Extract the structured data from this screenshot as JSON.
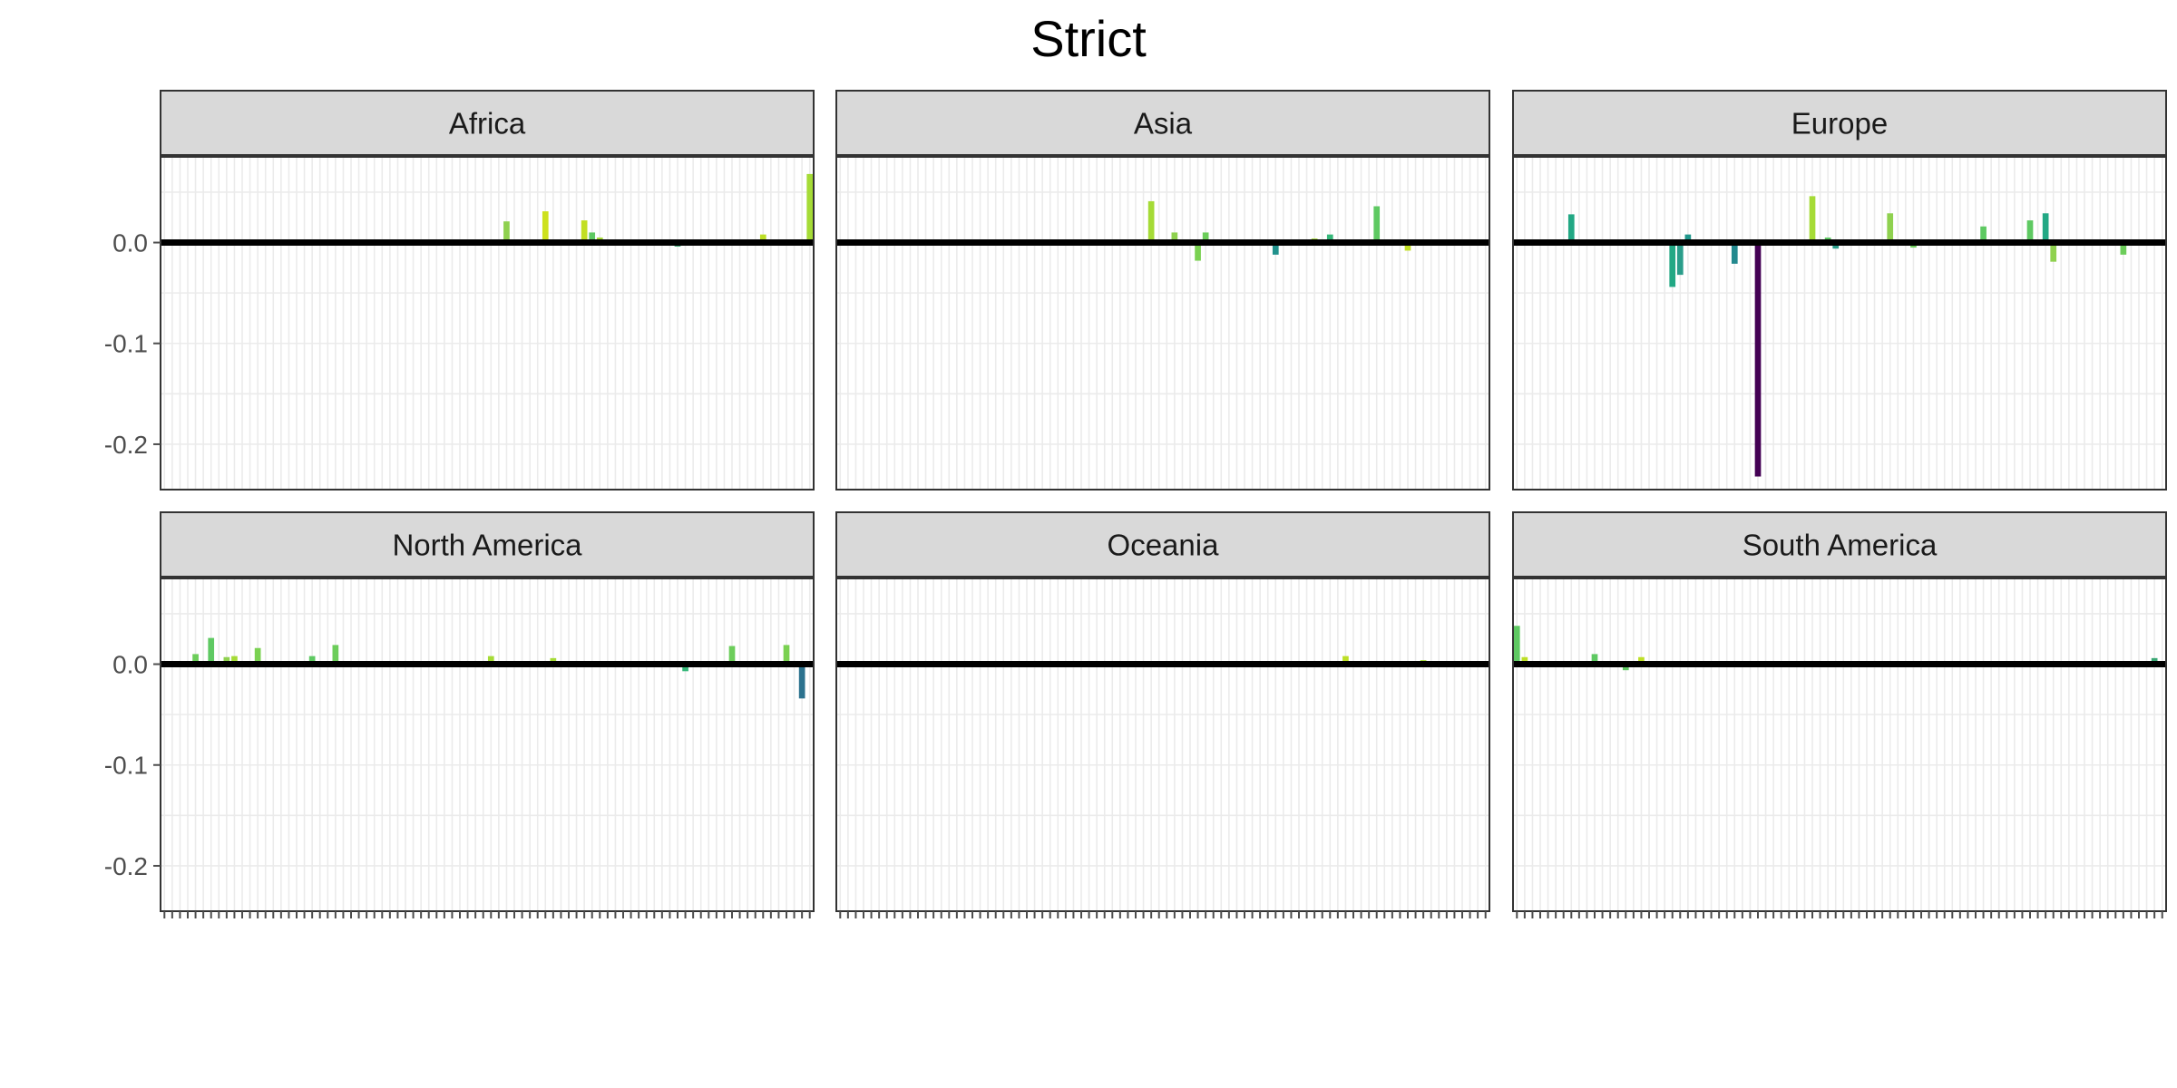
{
  "chart_data": {
    "type": "bar",
    "title": "Strict",
    "xlabel": "",
    "ylabel": "",
    "ylim": [
      -0.245,
      0.085
    ],
    "y_ticks": [
      0.0,
      -0.1,
      -0.2
    ],
    "y_tick_labels": [
      "0.0",
      "-0.1",
      "-0.2"
    ],
    "grid": true,
    "legend": "none",
    "zero_line": true,
    "facet_layout": "2 rows x 3 columns",
    "n_categories": 84,
    "colors": {
      "strip_fill": "#d9d9d9",
      "panel_border": "#333333",
      "grid_major": "#ebebeb",
      "zero_line": "#000000",
      "axis_text": "#4d4d4d"
    },
    "panels": [
      {
        "label": "Africa",
        "bars": [
          {
            "index": 30,
            "value": -0.003,
            "color": "#3aa774"
          },
          {
            "index": 44,
            "value": 0.021,
            "color": "#8fd14f"
          },
          {
            "index": 49,
            "value": 0.031,
            "color": "#cde11d"
          },
          {
            "index": 54,
            "value": 0.022,
            "color": "#c2df23"
          },
          {
            "index": 55,
            "value": 0.01,
            "color": "#5ec962"
          },
          {
            "index": 56,
            "value": 0.005,
            "color": "#a5db36"
          },
          {
            "index": 66,
            "value": -0.004,
            "color": "#3aa774"
          },
          {
            "index": 77,
            "value": 0.008,
            "color": "#bddf26"
          },
          {
            "index": 83,
            "value": 0.068,
            "color": "#a5db36"
          }
        ]
      },
      {
        "label": "Asia",
        "bars": [
          {
            "index": 40,
            "value": 0.041,
            "color": "#a5db36"
          },
          {
            "index": 43,
            "value": 0.01,
            "color": "#8fd14f"
          },
          {
            "index": 46,
            "value": -0.018,
            "color": "#7ad151"
          },
          {
            "index": 47,
            "value": 0.01,
            "color": "#6ccd5a"
          },
          {
            "index": 56,
            "value": -0.012,
            "color": "#21918c"
          },
          {
            "index": 61,
            "value": 0.004,
            "color": "#a5db36"
          },
          {
            "index": 63,
            "value": 0.008,
            "color": "#35b779"
          },
          {
            "index": 69,
            "value": 0.036,
            "color": "#5ec962"
          },
          {
            "index": 73,
            "value": -0.008,
            "color": "#c2df23"
          }
        ]
      },
      {
        "label": "Europe",
        "bars": [
          {
            "index": 7,
            "value": 0.028,
            "color": "#22a884"
          },
          {
            "index": 20,
            "value": -0.044,
            "color": "#22a884"
          },
          {
            "index": 21,
            "value": -0.032,
            "color": "#2a9d8a"
          },
          {
            "index": 22,
            "value": 0.008,
            "color": "#1f968b"
          },
          {
            "index": 28,
            "value": -0.021,
            "color": "#23898e"
          },
          {
            "index": 31,
            "value": -0.232,
            "color": "#440154"
          },
          {
            "index": 38,
            "value": 0.046,
            "color": "#a5db36"
          },
          {
            "index": 40,
            "value": 0.005,
            "color": "#5ec962"
          },
          {
            "index": 41,
            "value": -0.006,
            "color": "#2a9d8a"
          },
          {
            "index": 48,
            "value": 0.029,
            "color": "#8fd14f"
          },
          {
            "index": 51,
            "value": -0.005,
            "color": "#6ccd5a"
          },
          {
            "index": 60,
            "value": 0.016,
            "color": "#5ec962"
          },
          {
            "index": 66,
            "value": 0.022,
            "color": "#5ec962"
          },
          {
            "index": 68,
            "value": 0.029,
            "color": "#22a884"
          },
          {
            "index": 69,
            "value": -0.019,
            "color": "#8fd14f"
          },
          {
            "index": 78,
            "value": -0.012,
            "color": "#6ccd5a"
          }
        ]
      },
      {
        "label": "North America",
        "bars": [
          {
            "index": 4,
            "value": 0.01,
            "color": "#6ccd5a"
          },
          {
            "index": 6,
            "value": 0.026,
            "color": "#5ec962"
          },
          {
            "index": 8,
            "value": 0.007,
            "color": "#8fd14f"
          },
          {
            "index": 9,
            "value": 0.008,
            "color": "#a5db36"
          },
          {
            "index": 12,
            "value": 0.016,
            "color": "#7ad151"
          },
          {
            "index": 19,
            "value": 0.008,
            "color": "#5ec962"
          },
          {
            "index": 22,
            "value": 0.019,
            "color": "#6ccd5a"
          },
          {
            "index": 35,
            "value": 0.003,
            "color": "#5ec962"
          },
          {
            "index": 42,
            "value": 0.008,
            "color": "#a5db36"
          },
          {
            "index": 50,
            "value": 0.006,
            "color": "#a5db36"
          },
          {
            "index": 63,
            "value": -0.002,
            "color": "#a5db36"
          },
          {
            "index": 67,
            "value": -0.007,
            "color": "#35b779"
          },
          {
            "index": 73,
            "value": 0.018,
            "color": "#6ccd5a"
          },
          {
            "index": 80,
            "value": 0.019,
            "color": "#7ad151"
          },
          {
            "index": 82,
            "value": -0.034,
            "color": "#2c728e"
          }
        ]
      },
      {
        "label": "Oceania",
        "bars": [
          {
            "index": 2,
            "value": 0.003,
            "color": "#8fd14f"
          },
          {
            "index": 65,
            "value": 0.008,
            "color": "#bddf26"
          },
          {
            "index": 75,
            "value": 0.004,
            "color": "#a5db36"
          }
        ]
      },
      {
        "label": "South America",
        "bars": [
          {
            "index": 0,
            "value": 0.038,
            "color": "#5ec962"
          },
          {
            "index": 1,
            "value": 0.007,
            "color": "#bddf26"
          },
          {
            "index": 10,
            "value": 0.01,
            "color": "#5ec962"
          },
          {
            "index": 14,
            "value": -0.006,
            "color": "#5ec962"
          },
          {
            "index": 16,
            "value": 0.007,
            "color": "#bddf26"
          },
          {
            "index": 82,
            "value": 0.006,
            "color": "#3aa774"
          }
        ]
      }
    ]
  }
}
